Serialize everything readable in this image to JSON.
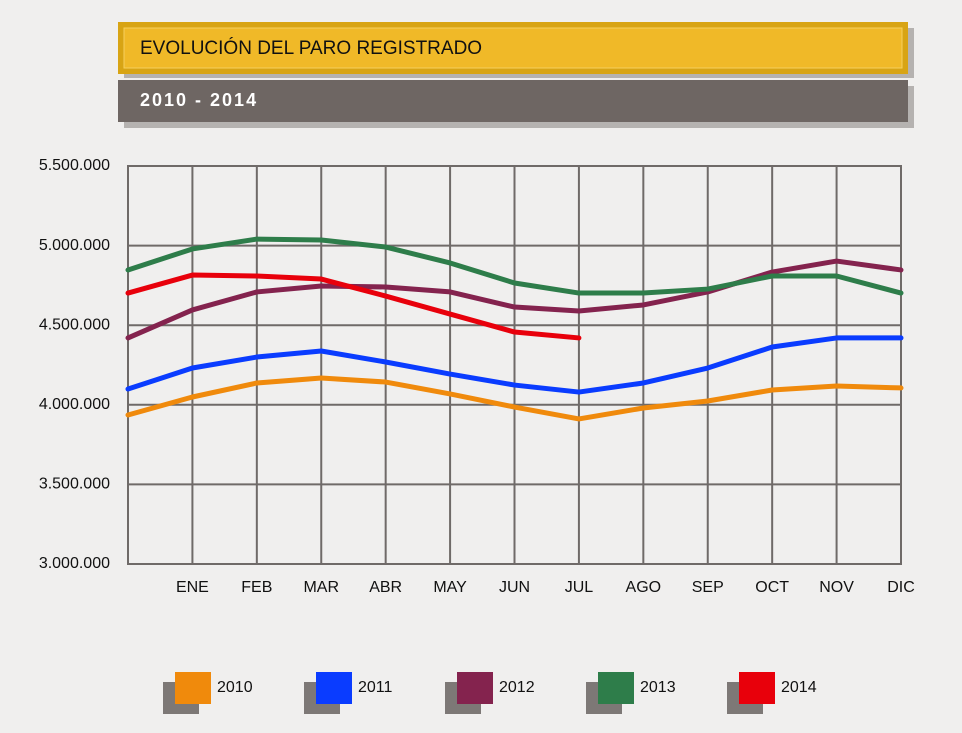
{
  "chart_data": {
    "type": "line",
    "title": "EVOLUCIÓN DEL PARO REGISTRADO",
    "subtitle": "2010 - 2014",
    "categories": [
      null,
      "ENE",
      "FEB",
      "MAR",
      "ABR",
      "MAY",
      "JUN",
      "JUL",
      "AGO",
      "SEP",
      "OCT",
      "NOV",
      "DIC"
    ],
    "series": [
      {
        "name": "2010",
        "color": "#f08a0c",
        "values": [
          3936000,
          4049000,
          4137000,
          4168000,
          4143000,
          4068000,
          3986000,
          3911000,
          3980000,
          4024000,
          4093000,
          4118000,
          4106000
        ]
      },
      {
        "name": "2011",
        "color": "#0a3cff",
        "values": [
          4099000,
          4231000,
          4300000,
          4338000,
          4269000,
          4193000,
          4124000,
          4080000,
          4137000,
          4231000,
          4363000,
          4420000,
          4420000
        ]
      },
      {
        "name": "2012",
        "color": "#84234e",
        "values": [
          4420000,
          4596000,
          4709000,
          4746000,
          4740000,
          4709000,
          4614000,
          4589000,
          4627000,
          4709000,
          4834000,
          4903000,
          4847000
        ]
      },
      {
        "name": "2013",
        "color": "#2e7d4a",
        "values": [
          4847000,
          4979000,
          5041000,
          5035000,
          4991000,
          4891000,
          4765000,
          4702000,
          4702000,
          4727000,
          4809000,
          4809000,
          4702000
        ]
      },
      {
        "name": "2014",
        "color": "#e8000b",
        "values": [
          4702000,
          4815000,
          4809000,
          4790000,
          4683000,
          4570000,
          4457000,
          4420000,
          null,
          null,
          null,
          null,
          null
        ]
      }
    ],
    "ylim": [
      3000000,
      5500000
    ],
    "yticks": [
      {
        "value": 3000000,
        "label": "3.000.000"
      },
      {
        "value": 3500000,
        "label": "3.500.000"
      },
      {
        "value": 4000000,
        "label": "4.000.000"
      },
      {
        "value": 4500000,
        "label": "4.500.000"
      },
      {
        "value": 5000000,
        "label": "5.000.000"
      },
      {
        "value": 5500000,
        "label": "5.500.000"
      }
    ],
    "grid": true
  }
}
